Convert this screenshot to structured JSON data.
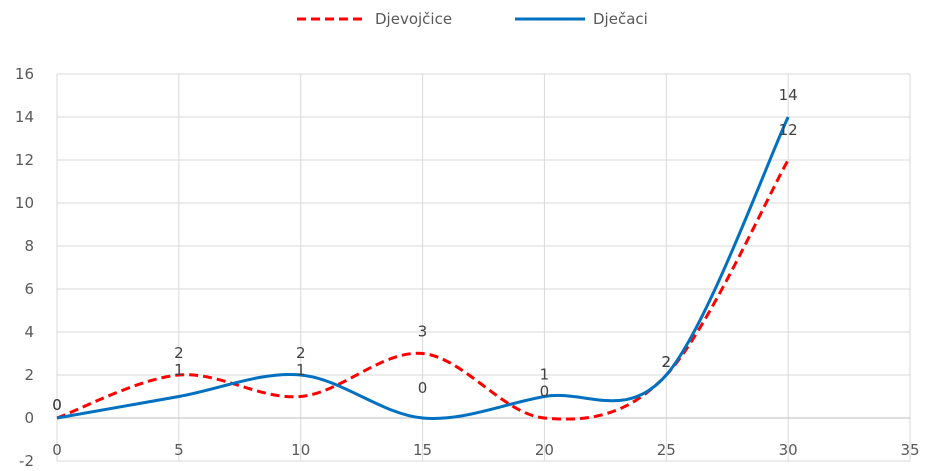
{
  "chart_data": {
    "type": "line",
    "smooth": true,
    "x": [
      0,
      5,
      10,
      15,
      20,
      25,
      30
    ],
    "series": [
      {
        "name": "Djevojčice",
        "values": [
          0,
          2,
          1,
          3,
          0,
          2,
          12
        ],
        "color": "#FF0000",
        "style": "dashed"
      },
      {
        "name": "Dječaci",
        "values": [
          0,
          1,
          2,
          0,
          1,
          2,
          14
        ],
        "color": "#0070C0",
        "style": "solid"
      }
    ],
    "xlim": [
      0,
      35
    ],
    "xticks": [
      0,
      5,
      10,
      15,
      20,
      25,
      30,
      35
    ],
    "ylim": [
      -2,
      16
    ],
    "yticks": [
      -2,
      0,
      2,
      4,
      6,
      8,
      10,
      12,
      14,
      16
    ],
    "grid": true,
    "legend_position": "top",
    "data_labels": true
  }
}
